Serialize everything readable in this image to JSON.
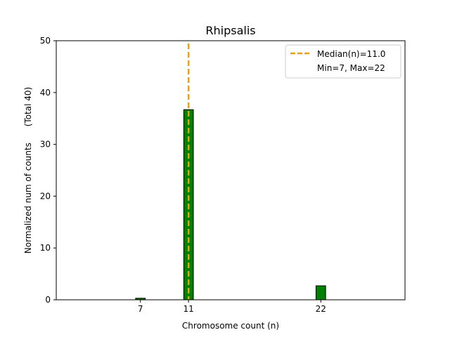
{
  "chart_data": {
    "type": "bar",
    "title": "Rhipsalis",
    "xlabel": "Chromosome count (n)",
    "ylabel": "Normalized num of counts      (Total 40)",
    "xlim": [
      0,
      29
    ],
    "ylim": [
      0,
      50
    ],
    "x_ticks": [
      "7",
      "11",
      "22"
    ],
    "y_ticks": [
      "0",
      "10",
      "20",
      "30",
      "40",
      "50"
    ],
    "bars": [
      {
        "x": 7,
        "value": 0.3
      },
      {
        "x": 11,
        "value": 36.7
      },
      {
        "x": 22,
        "value": 2.7
      }
    ],
    "bar_width": 0.8,
    "bar_color": "#008000",
    "bar_edge_color": "#000000",
    "median_line": {
      "x": 11.0,
      "color": "#f0a000",
      "style": "dashed"
    },
    "legend": {
      "placement": "top-right",
      "entries": [
        {
          "label": "Median(n)=11.0",
          "marker": "dashed-line",
          "color": "#f0a000"
        },
        {
          "label": "Min=7, Max=22",
          "marker": "none",
          "color": ""
        }
      ]
    },
    "grid": false
  }
}
